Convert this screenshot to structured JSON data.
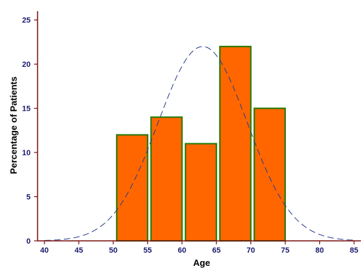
{
  "chart_data": {
    "type": "bar",
    "subtype": "histogram",
    "xlabel": "Age",
    "ylabel": "Percentage of Patients",
    "xlim": [
      39,
      86
    ],
    "ylim": [
      0,
      26
    ],
    "x_ticks": [
      40,
      45,
      50,
      55,
      60,
      65,
      70,
      75,
      80,
      85
    ],
    "y_ticks": [
      0,
      5,
      10,
      15,
      20,
      25
    ],
    "bins": [
      {
        "start": 50.5,
        "end": 55,
        "value": 12
      },
      {
        "start": 55.5,
        "end": 60,
        "value": 14
      },
      {
        "start": 60.5,
        "end": 65,
        "value": 11
      },
      {
        "start": 65.5,
        "end": 70,
        "value": 22
      },
      {
        "start": 70.5,
        "end": 75,
        "value": 15
      }
    ],
    "fitted_curve": {
      "type": "normal",
      "mean": 63,
      "sd": 6.5,
      "peak": 22,
      "style": "dashed"
    },
    "grid": false,
    "legend": false,
    "colors": {
      "bar_fill": "#ff6600",
      "bar_edge": "#1f7a00",
      "axis": "#7a1010",
      "curve": "#2a3c8c",
      "tick_text": "#1a1a6e"
    }
  }
}
